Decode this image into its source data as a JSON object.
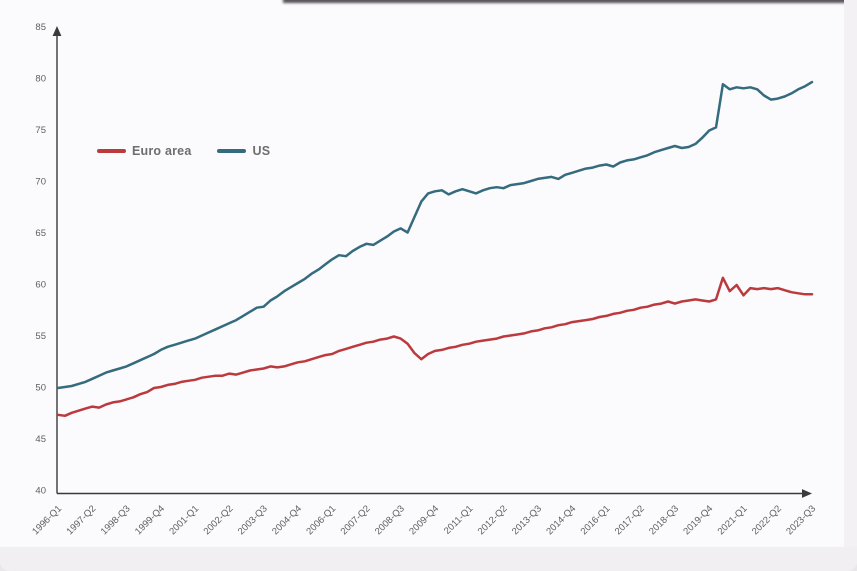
{
  "chart_data": {
    "type": "line",
    "title": "",
    "xlabel": "",
    "ylabel": "",
    "ylim": [
      40,
      85
    ],
    "y_ticks": [
      40,
      45,
      50,
      55,
      60,
      65,
      70,
      75,
      80,
      85
    ],
    "x_tick_labels": [
      "1996-Q1",
      "1997-Q2",
      "1998-Q3",
      "1999-Q4",
      "2001-Q1",
      "2002-Q2",
      "2003-Q3",
      "2004-Q4",
      "2006-Q1",
      "2007-Q2",
      "2008-Q3",
      "2009-Q4",
      "2011-Q1",
      "2012-Q2",
      "2013-Q3",
      "2014-Q4",
      "2016-Q1",
      "2017-Q2",
      "2018-Q3",
      "2019-Q4",
      "2021-Q1",
      "2022-Q2",
      "2023-Q3"
    ],
    "x_tick_every": 5,
    "x_range": {
      "start": "1996-Q1",
      "end": "2023-Q3",
      "frequency": "quarterly",
      "points": 111
    },
    "grid": false,
    "legend_position": "upper-left",
    "axis_color": "#3a3a3a",
    "tick_label_color": "#5f5f5f",
    "series": [
      {
        "name": "Euro area",
        "color": "#bb3a3e",
        "values": [
          47.3,
          47.2,
          47.5,
          47.7,
          47.9,
          48.1,
          48.0,
          48.3,
          48.5,
          48.6,
          48.8,
          49.0,
          49.3,
          49.5,
          49.9,
          50.0,
          50.2,
          50.3,
          50.5,
          50.6,
          50.7,
          50.9,
          51.0,
          51.1,
          51.1,
          51.3,
          51.2,
          51.4,
          51.6,
          51.7,
          51.8,
          52.0,
          51.9,
          52.0,
          52.2,
          52.4,
          52.5,
          52.7,
          52.9,
          53.1,
          53.2,
          53.5,
          53.7,
          53.9,
          54.1,
          54.3,
          54.4,
          54.6,
          54.7,
          54.9,
          54.7,
          54.2,
          53.3,
          52.7,
          53.2,
          53.5,
          53.6,
          53.8,
          53.9,
          54.1,
          54.2,
          54.4,
          54.5,
          54.6,
          54.7,
          54.9,
          55.0,
          55.1,
          55.2,
          55.4,
          55.5,
          55.7,
          55.8,
          56.0,
          56.1,
          56.3,
          56.4,
          56.5,
          56.6,
          56.8,
          56.9,
          57.1,
          57.2,
          57.4,
          57.5,
          57.7,
          57.8,
          58.0,
          58.1,
          58.3,
          58.1,
          58.3,
          58.4,
          58.5,
          58.4,
          58.3,
          58.5,
          60.6,
          59.3,
          59.9,
          58.9,
          59.6,
          59.5,
          59.6,
          59.5,
          59.6,
          59.4,
          59.2,
          59.1,
          59.0,
          59.0
        ]
      },
      {
        "name": "US",
        "color": "#356b7e",
        "values": [
          49.9,
          50.0,
          50.1,
          50.3,
          50.5,
          50.8,
          51.1,
          51.4,
          51.6,
          51.8,
          52.0,
          52.3,
          52.6,
          52.9,
          53.2,
          53.6,
          53.9,
          54.1,
          54.3,
          54.5,
          54.7,
          55.0,
          55.3,
          55.6,
          55.9,
          56.2,
          56.5,
          56.9,
          57.3,
          57.7,
          57.8,
          58.4,
          58.8,
          59.3,
          59.7,
          60.1,
          60.5,
          61.0,
          61.4,
          61.9,
          62.4,
          62.8,
          62.7,
          63.2,
          63.6,
          63.9,
          63.8,
          64.2,
          64.6,
          65.1,
          65.4,
          65.0,
          66.5,
          68.0,
          68.8,
          69.0,
          69.1,
          68.7,
          69.0,
          69.2,
          69.0,
          68.8,
          69.1,
          69.3,
          69.4,
          69.3,
          69.6,
          69.7,
          69.8,
          70.0,
          70.2,
          70.3,
          70.4,
          70.2,
          70.6,
          70.8,
          71.0,
          71.2,
          71.3,
          71.5,
          71.6,
          71.4,
          71.8,
          72.0,
          72.1,
          72.3,
          72.5,
          72.8,
          73.0,
          73.2,
          73.4,
          73.2,
          73.3,
          73.6,
          74.2,
          74.9,
          75.2,
          79.4,
          78.9,
          79.1,
          79.0,
          79.1,
          78.9,
          78.3,
          77.9,
          78.0,
          78.2,
          78.5,
          78.9,
          79.2,
          79.6
        ]
      }
    ]
  },
  "legend": {
    "items": [
      {
        "label": "Euro area"
      },
      {
        "label": "US"
      }
    ]
  }
}
